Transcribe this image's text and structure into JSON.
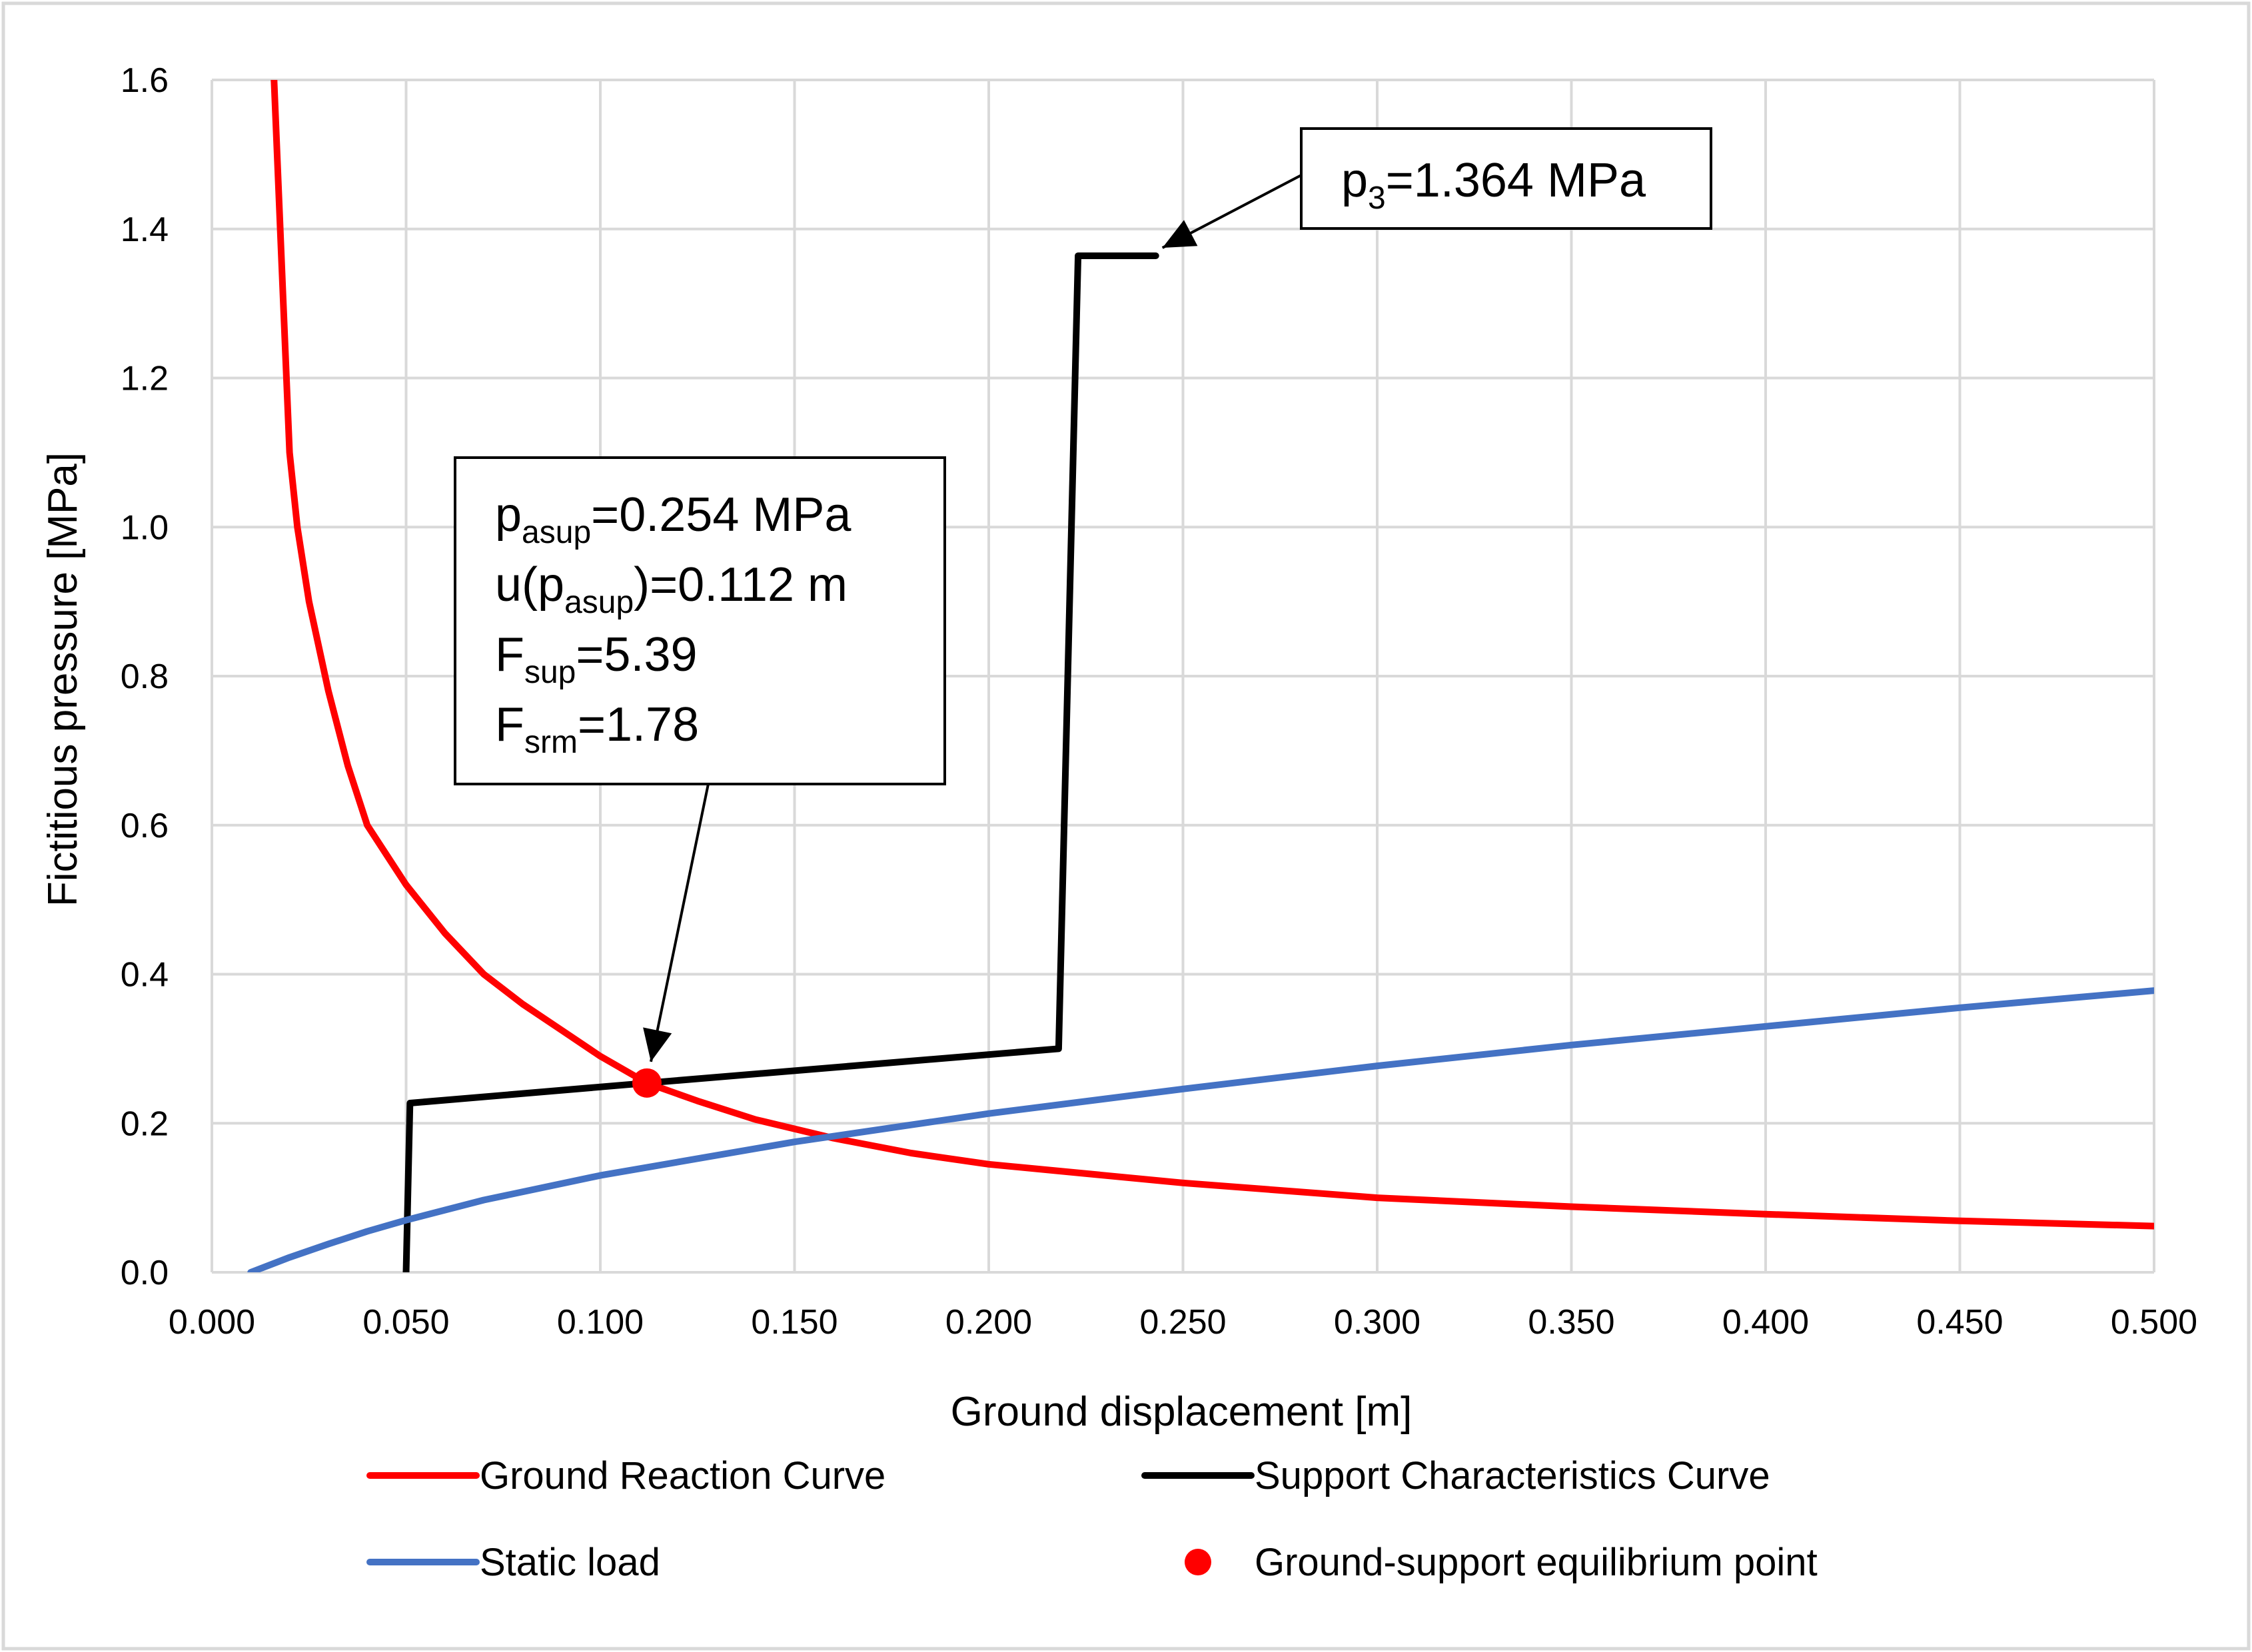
{
  "chart_data": {
    "type": "line",
    "title": "",
    "xlabel": "Ground displacement [m]",
    "ylabel": "Fictitious pressure [MPa]",
    "xlim": [
      0,
      0.5
    ],
    "ylim": [
      0,
      1.6
    ],
    "xticks": [
      0,
      0.05,
      0.1,
      0.15,
      0.2,
      0.25,
      0.3,
      0.35,
      0.4,
      0.45,
      0.5
    ],
    "xtick_labels": [
      "0.000",
      "0.050",
      "0.100",
      "0.150",
      "0.200",
      "0.250",
      "0.300",
      "0.350",
      "0.400",
      "0.450",
      "0.500"
    ],
    "yticks": [
      0,
      0.2,
      0.4,
      0.6,
      0.8,
      1.0,
      1.2,
      1.4,
      1.6
    ],
    "ytick_labels": [
      "0.0",
      "0.2",
      "0.4",
      "0.6",
      "0.8",
      "1.0",
      "1.2",
      "1.4",
      "1.6"
    ],
    "grid": true,
    "legend_position": "bottom",
    "series": [
      {
        "name": "Ground Reaction Curve",
        "color": "#ff0000",
        "x": [
          0.016,
          0.018,
          0.02,
          0.022,
          0.025,
          0.03,
          0.035,
          0.04,
          0.045,
          0.05,
          0.06,
          0.07,
          0.08,
          0.09,
          0.1,
          0.112,
          0.125,
          0.14,
          0.16,
          0.18,
          0.2,
          0.22,
          0.25,
          0.3,
          0.35,
          0.4,
          0.45,
          0.5
        ],
        "y": [
          1.6,
          1.35,
          1.1,
          1.0,
          0.9,
          0.78,
          0.68,
          0.6,
          0.56,
          0.52,
          0.455,
          0.4,
          0.36,
          0.325,
          0.29,
          0.254,
          0.23,
          0.205,
          0.18,
          0.16,
          0.145,
          0.135,
          0.12,
          0.1,
          0.088,
          0.078,
          0.069,
          0.062
        ]
      },
      {
        "name": "Support Characteristics Curve",
        "color": "#000000",
        "x": [
          0.05,
          0.051,
          0.112,
          0.218,
          0.223,
          0.243
        ],
        "y": [
          0.0,
          0.227,
          0.254,
          0.3,
          1.364,
          1.364
        ]
      },
      {
        "name": "Static load",
        "color": "#4472c4",
        "x": [
          0.01,
          0.015,
          0.02,
          0.03,
          0.04,
          0.05,
          0.07,
          0.1,
          0.15,
          0.2,
          0.25,
          0.3,
          0.35,
          0.4,
          0.45,
          0.5
        ],
        "y": [
          0.0,
          0.01,
          0.02,
          0.038,
          0.055,
          0.07,
          0.097,
          0.13,
          0.175,
          0.213,
          0.246,
          0.277,
          0.305,
          0.33,
          0.355,
          0.378
        ]
      }
    ],
    "points": [
      {
        "name": "Ground-support equilibrium point",
        "color": "#ff0000",
        "x": 0.112,
        "y": 0.254
      }
    ],
    "annotations": [
      {
        "id": "eq",
        "target_x": 0.112,
        "target_y": 0.254,
        "lines": [
          {
            "main": "p",
            "sub": "asup",
            "rest": "=0.254 MPa"
          },
          {
            "main": "u(p",
            "sub": "asup",
            "rest": ")=0.112 m"
          },
          {
            "main": "F",
            "sub": "sup",
            "rest": "=5.39"
          },
          {
            "main": "F",
            "sub": "srm",
            "rest": "=1.78"
          }
        ]
      },
      {
        "id": "p3",
        "target_x": 0.243,
        "target_y": 1.364,
        "lines": [
          {
            "main": "p",
            "sub": "3",
            "rest": "=1.364 MPa"
          }
        ]
      }
    ]
  }
}
